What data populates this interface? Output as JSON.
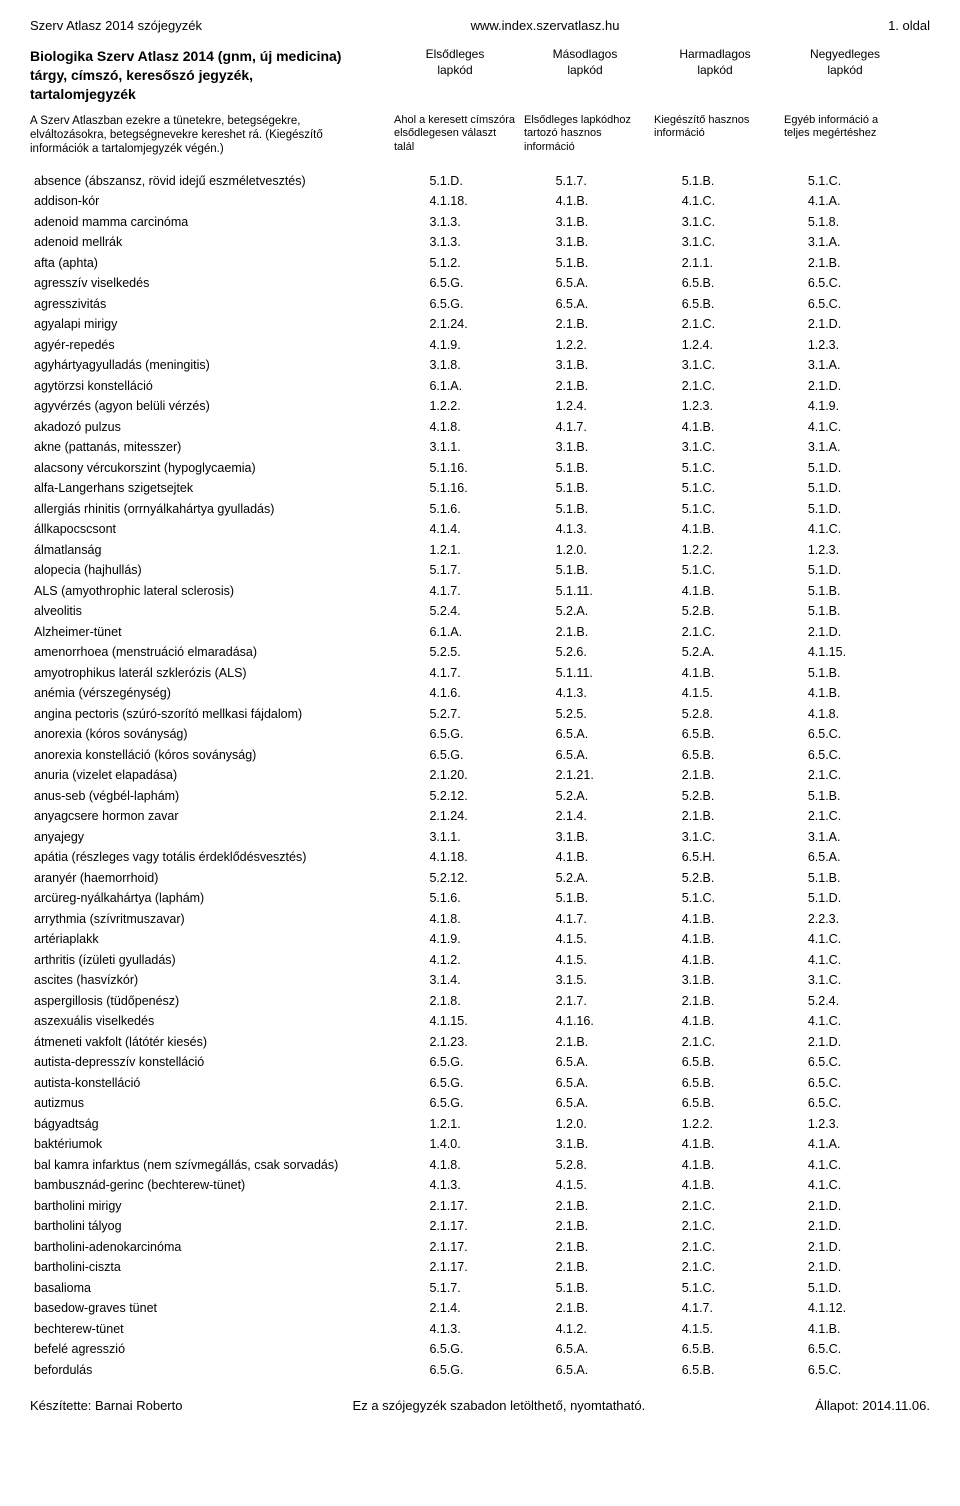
{
  "header": {
    "left": "Szerv Atlasz 2014 szójegyzék",
    "center": "www.index.szervatlasz.hu",
    "right": "1. oldal"
  },
  "title": {
    "line1": "Biologika Szerv Atlasz 2014 (gnm, új medicina)",
    "line2": "tárgy, címszó, keresőszó jegyzék, tartalomjegyzék"
  },
  "col_defs": {
    "c1_top": "Elsődleges",
    "c1_bot": "lapkód",
    "c2_top": "Másodlagos",
    "c2_bot": "lapkód",
    "c3_top": "Harmadlagos",
    "c3_bot": "lapkód",
    "c4_top": "Negyedleges",
    "c4_bot": "lapkód"
  },
  "desc": {
    "text": "A Szerv Atlaszban ezekre a tünetekre, betegségekre, elváltozásokra, betegségnevekre kereshet rá. (Kiegészítő információk a tartalomjegyzék végén.)",
    "c1": "Ahol a keresett címszóra elsődlegesen választ talál",
    "c2": "Elsődleges lapkódhoz tartozó hasznos információ",
    "c3": "Kiegészítő hasznos információ",
    "c4": "Egyéb információ a teljes megértéshez"
  },
  "rows": [
    {
      "n": "absence (ábszansz, rövid idejű eszméletvesztés)",
      "a": "5.1.D.",
      "b": "5.1.7.",
      "c": "5.1.B.",
      "d": "5.1.C."
    },
    {
      "n": "addison-kór",
      "a": "4.1.18.",
      "b": "4.1.B.",
      "c": "4.1.C.",
      "d": "4.1.A."
    },
    {
      "n": "adenoid mamma carcinóma",
      "a": "3.1.3.",
      "b": "3.1.B.",
      "c": "3.1.C.",
      "d": "5.1.8."
    },
    {
      "n": "adenoid mellrák",
      "a": "3.1.3.",
      "b": "3.1.B.",
      "c": "3.1.C.",
      "d": "3.1.A."
    },
    {
      "n": "afta (aphta)",
      "a": "5.1.2.",
      "b": "5.1.B.",
      "c": "2.1.1.",
      "d": "2.1.B."
    },
    {
      "n": "agresszív viselkedés",
      "a": "6.5.G.",
      "b": "6.5.A.",
      "c": "6.5.B.",
      "d": "6.5.C."
    },
    {
      "n": "agresszivitás",
      "a": "6.5.G.",
      "b": "6.5.A.",
      "c": "6.5.B.",
      "d": "6.5.C."
    },
    {
      "n": "agyalapi mirigy",
      "a": "2.1.24.",
      "b": "2.1.B.",
      "c": "2.1.C.",
      "d": "2.1.D."
    },
    {
      "n": "agyér-repedés",
      "a": "4.1.9.",
      "b": "1.2.2.",
      "c": "1.2.4.",
      "d": "1.2.3."
    },
    {
      "n": "agyhártyagyulladás (meningitis)",
      "a": "3.1.8.",
      "b": "3.1.B.",
      "c": "3.1.C.",
      "d": "3.1.A."
    },
    {
      "n": "agytörzsi konstelláció",
      "a": "6.1.A.",
      "b": "2.1.B.",
      "c": "2.1.C.",
      "d": "2.1.D."
    },
    {
      "n": "agyvérzés (agyon belüli vérzés)",
      "a": "1.2.2.",
      "b": "1.2.4.",
      "c": "1.2.3.",
      "d": "4.1.9."
    },
    {
      "n": "akadozó pulzus",
      "a": "4.1.8.",
      "b": "4.1.7.",
      "c": "4.1.B.",
      "d": "4.1.C."
    },
    {
      "n": "akne (pattanás, mitesszer)",
      "a": "3.1.1.",
      "b": "3.1.B.",
      "c": "3.1.C.",
      "d": "3.1.A."
    },
    {
      "n": "alacsony vércukorszint (hypoglycaemia)",
      "a": "5.1.16.",
      "b": "5.1.B.",
      "c": "5.1.C.",
      "d": "5.1.D."
    },
    {
      "n": "alfa-Langerhans szigetsejtek",
      "a": "5.1.16.",
      "b": "5.1.B.",
      "c": "5.1.C.",
      "d": "5.1.D."
    },
    {
      "n": "allergiás rhinitis (orrnyálkahártya gyulladás)",
      "a": "5.1.6.",
      "b": "5.1.B.",
      "c": "5.1.C.",
      "d": "5.1.D."
    },
    {
      "n": "állkapocscsont",
      "a": "4.1.4.",
      "b": "4.1.3.",
      "c": "4.1.B.",
      "d": "4.1.C."
    },
    {
      "n": "álmatlanság",
      "a": "1.2.1.",
      "b": "1.2.0.",
      "c": "1.2.2.",
      "d": "1.2.3."
    },
    {
      "n": "alopecia (hajhullás)",
      "a": "5.1.7.",
      "b": "5.1.B.",
      "c": "5.1.C.",
      "d": "5.1.D."
    },
    {
      "n": "ALS (amyothrophic lateral sclerosis)",
      "a": "4.1.7.",
      "b": "5.1.11.",
      "c": "4.1.B.",
      "d": "5.1.B."
    },
    {
      "n": "alveolitis",
      "a": "5.2.4.",
      "b": "5.2.A.",
      "c": "5.2.B.",
      "d": "5.1.B."
    },
    {
      "n": "Alzheimer-tünet",
      "a": "6.1.A.",
      "b": "2.1.B.",
      "c": "2.1.C.",
      "d": "2.1.D."
    },
    {
      "n": "amenorrhoea (menstruáció elmaradása)",
      "a": "5.2.5.",
      "b": "5.2.6.",
      "c": "5.2.A.",
      "d": "4.1.15."
    },
    {
      "n": "amyotrophikus laterál szklerózis (ALS)",
      "a": "4.1.7.",
      "b": "5.1.11.",
      "c": "4.1.B.",
      "d": "5.1.B."
    },
    {
      "n": "anémia (vérszegénység)",
      "a": "4.1.6.",
      "b": "4.1.3.",
      "c": "4.1.5.",
      "d": "4.1.B."
    },
    {
      "n": "angina pectoris (szúró-szorító mellkasi fájdalom)",
      "a": "5.2.7.",
      "b": "5.2.5.",
      "c": "5.2.8.",
      "d": "4.1.8."
    },
    {
      "n": "anorexia (kóros soványság)",
      "a": "6.5.G.",
      "b": "6.5.A.",
      "c": "6.5.B.",
      "d": "6.5.C."
    },
    {
      "n": "anorexia konstelláció (kóros soványság)",
      "a": "6.5.G.",
      "b": "6.5.A.",
      "c": "6.5.B.",
      "d": "6.5.C."
    },
    {
      "n": "anuria (vizelet elapadása)",
      "a": "2.1.20.",
      "b": "2.1.21.",
      "c": "2.1.B.",
      "d": "2.1.C."
    },
    {
      "n": "anus-seb (végbél-laphám)",
      "a": "5.2.12.",
      "b": "5.2.A.",
      "c": "5.2.B.",
      "d": "5.1.B."
    },
    {
      "n": "anyagcsere hormon zavar",
      "a": "2.1.24.",
      "b": "2.1.4.",
      "c": "2.1.B.",
      "d": "2.1.C."
    },
    {
      "n": "anyajegy",
      "a": "3.1.1.",
      "b": "3.1.B.",
      "c": "3.1.C.",
      "d": "3.1.A."
    },
    {
      "n": "apátia (részleges vagy totális érdeklődésvesztés)",
      "a": "4.1.18.",
      "b": "4.1.B.",
      "c": "6.5.H.",
      "d": "6.5.A."
    },
    {
      "n": "aranyér (haemorrhoid)",
      "a": "5.2.12.",
      "b": "5.2.A.",
      "c": "5.2.B.",
      "d": "5.1.B."
    },
    {
      "n": "arcüreg-nyálkahártya (laphám)",
      "a": "5.1.6.",
      "b": "5.1.B.",
      "c": "5.1.C.",
      "d": "5.1.D."
    },
    {
      "n": "arrythmia (szívritmuszavar)",
      "a": "4.1.8.",
      "b": "4.1.7.",
      "c": "4.1.B.",
      "d": "2.2.3."
    },
    {
      "n": "artériaplakk",
      "a": "4.1.9.",
      "b": "4.1.5.",
      "c": "4.1.B.",
      "d": "4.1.C."
    },
    {
      "n": "arthritis (ízületi gyulladás)",
      "a": "4.1.2.",
      "b": "4.1.5.",
      "c": "4.1.B.",
      "d": "4.1.C."
    },
    {
      "n": "ascites (hasvízkór)",
      "a": "3.1.4.",
      "b": "3.1.5.",
      "c": "3.1.B.",
      "d": "3.1.C."
    },
    {
      "n": "aspergillosis (tüdőpenész)",
      "a": "2.1.8.",
      "b": "2.1.7.",
      "c": "2.1.B.",
      "d": "5.2.4."
    },
    {
      "n": "aszexuális viselkedés",
      "a": "4.1.15.",
      "b": "4.1.16.",
      "c": "4.1.B.",
      "d": "4.1.C."
    },
    {
      "n": "átmeneti vakfolt (látótér kiesés)",
      "a": "2.1.23.",
      "b": "2.1.B.",
      "c": "2.1.C.",
      "d": "2.1.D."
    },
    {
      "n": "autista-depresszív konstelláció",
      "a": "6.5.G.",
      "b": "6.5.A.",
      "c": "6.5.B.",
      "d": "6.5.C."
    },
    {
      "n": "autista-konstelláció",
      "a": "6.5.G.",
      "b": "6.5.A.",
      "c": "6.5.B.",
      "d": "6.5.C."
    },
    {
      "n": "autizmus",
      "a": "6.5.G.",
      "b": "6.5.A.",
      "c": "6.5.B.",
      "d": "6.5.C."
    },
    {
      "n": "bágyadtság",
      "a": "1.2.1.",
      "b": "1.2.0.",
      "c": "1.2.2.",
      "d": "1.2.3."
    },
    {
      "n": "baktériumok",
      "a": "1.4.0.",
      "b": "3.1.B.",
      "c": "4.1.B.",
      "d": "4.1.A."
    },
    {
      "n": "bal kamra infarktus (nem szívmegállás, csak sorvadás)",
      "a": "4.1.8.",
      "b": "5.2.8.",
      "c": "4.1.B.",
      "d": "4.1.C."
    },
    {
      "n": "bambusznád-gerinc (bechterew-tünet)",
      "a": "4.1.3.",
      "b": "4.1.5.",
      "c": "4.1.B.",
      "d": "4.1.C."
    },
    {
      "n": "bartholini mirigy",
      "a": "2.1.17.",
      "b": "2.1.B.",
      "c": "2.1.C.",
      "d": "2.1.D."
    },
    {
      "n": "bartholini tályog",
      "a": "2.1.17.",
      "b": "2.1.B.",
      "c": "2.1.C.",
      "d": "2.1.D."
    },
    {
      "n": "bartholini-adenokarcinóma",
      "a": "2.1.17.",
      "b": "2.1.B.",
      "c": "2.1.C.",
      "d": "2.1.D."
    },
    {
      "n": "bartholini-ciszta",
      "a": "2.1.17.",
      "b": "2.1.B.",
      "c": "2.1.C.",
      "d": "2.1.D."
    },
    {
      "n": "basalioma",
      "a": "5.1.7.",
      "b": "5.1.B.",
      "c": "5.1.C.",
      "d": "5.1.D."
    },
    {
      "n": "basedow-graves tünet",
      "a": "2.1.4.",
      "b": "2.1.B.",
      "c": "4.1.7.",
      "d": "4.1.12."
    },
    {
      "n": "bechterew-tünet",
      "a": "4.1.3.",
      "b": "4.1.2.",
      "c": "4.1.5.",
      "d": "4.1.B."
    },
    {
      "n": "befelé agresszió",
      "a": "6.5.G.",
      "b": "6.5.A.",
      "c": "6.5.B.",
      "d": "6.5.C."
    },
    {
      "n": "befordulás",
      "a": "6.5.G.",
      "b": "6.5.A.",
      "c": "6.5.B.",
      "d": "6.5.C."
    }
  ],
  "footer": {
    "left": "Készítette: Barnai Roberto",
    "center": "Ez a szójegyzék szabadon letölthető, nyomtatható.",
    "right": "Állapot: 2014.11.06."
  }
}
